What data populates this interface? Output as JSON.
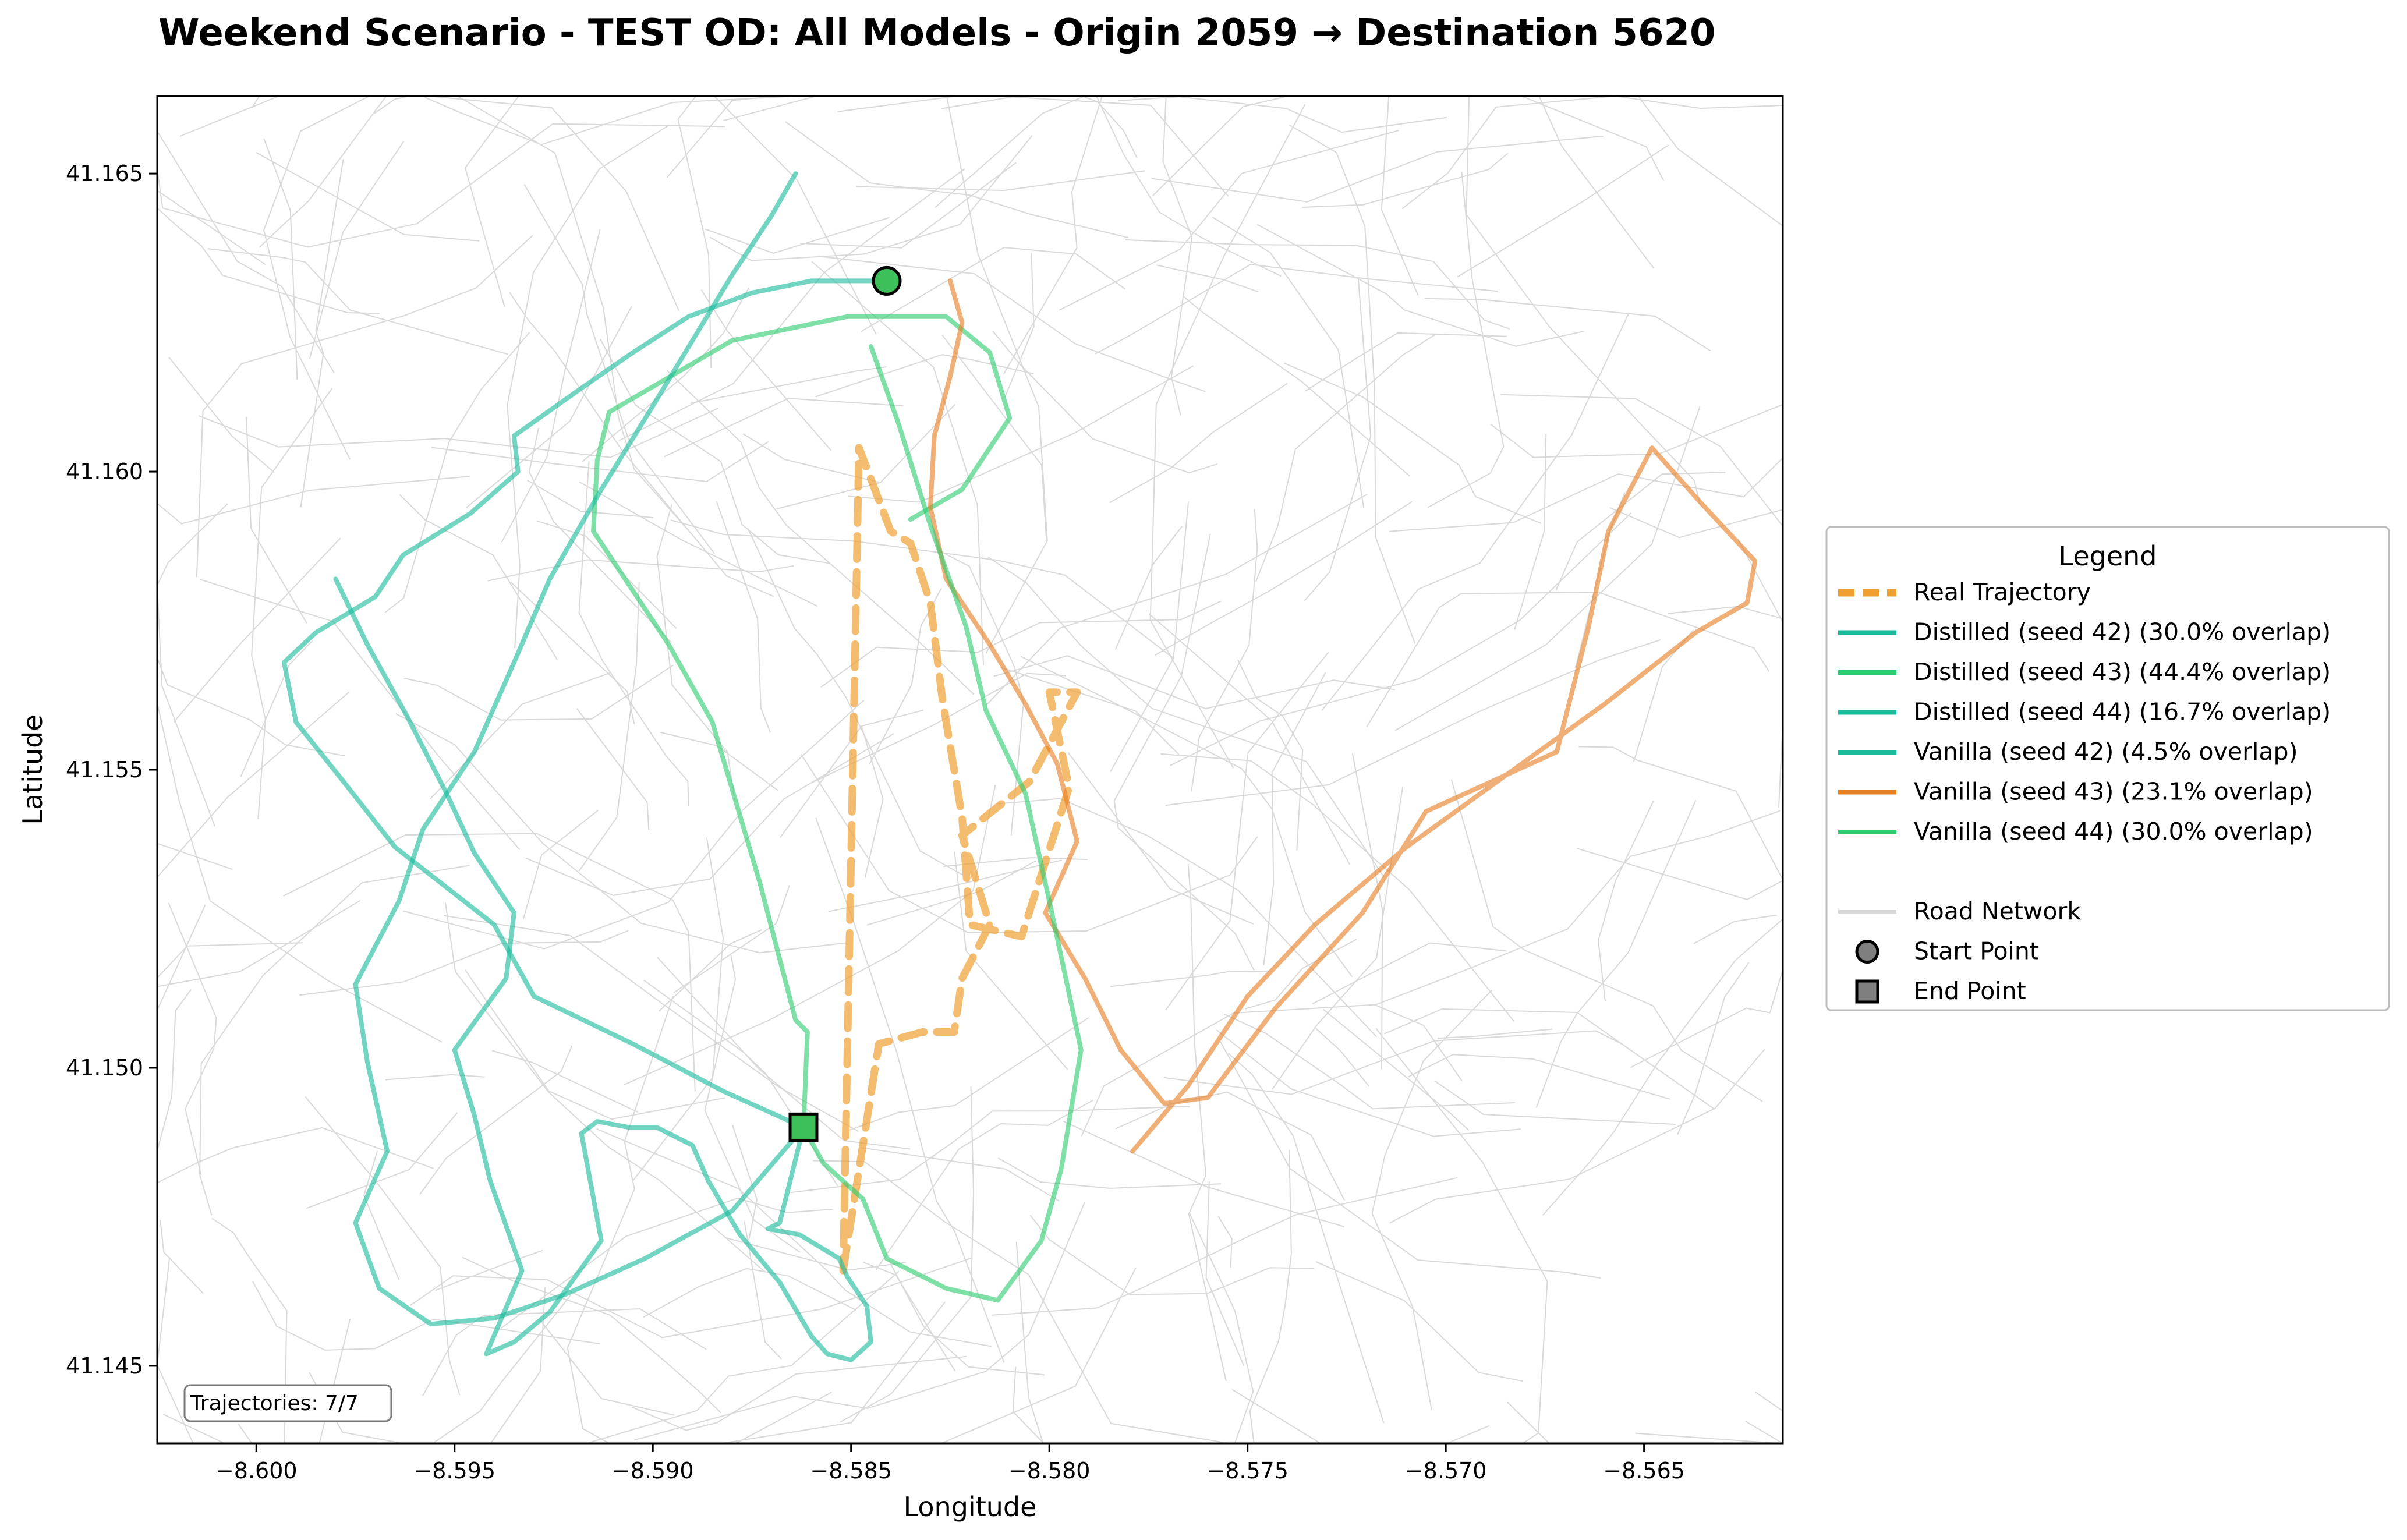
{
  "chart_data": {
    "type": "line",
    "title": "Weekend Scenario - TEST OD: All Models - Origin 2059 → Destination 5620",
    "xlabel": "Longitude",
    "ylabel": "Latitude",
    "xlim": [
      -8.6025,
      -8.5615
    ],
    "ylim": [
      41.1437,
      41.1663
    ],
    "x_ticks": [
      -8.6,
      -8.595,
      -8.59,
      -8.585,
      -8.58,
      -8.575,
      -8.57,
      -8.565
    ],
    "x_tick_labels": [
      "−8.600",
      "−8.595",
      "−8.590",
      "−8.585",
      "−8.580",
      "−8.575",
      "−8.570",
      "−8.565"
    ],
    "y_ticks": [
      41.145,
      41.15,
      41.155,
      41.16,
      41.165
    ],
    "y_tick_labels": [
      "41.145",
      "41.150",
      "41.155",
      "41.160",
      "41.165"
    ],
    "grid": false,
    "legend_position": "right (outside plot area)",
    "legend_title": "Legend",
    "annotation": "Trajectories: 7/7",
    "start_point": {
      "label": "Start Point",
      "x": -8.5841,
      "y": 41.1632,
      "color": "#3dbf5a"
    },
    "end_point": {
      "label": "End Point",
      "x": -8.5862,
      "y": 41.149,
      "color": "#3dbf5a"
    },
    "road_network": {
      "label": "Road Network",
      "color": "#d9d9d9"
    },
    "series": [
      {
        "name": "Real Trajectory",
        "color": "#f0a030",
        "style": "dashed",
        "x": [
          -8.5852,
          -8.5843,
          -8.5832,
          -8.5824,
          -8.5822,
          -8.5815,
          -8.5822,
          -8.5805,
          -8.5793,
          -8.58,
          -8.5795,
          -8.5807,
          -8.582,
          -8.5822,
          -8.5827,
          -8.583,
          -8.5835,
          -8.584,
          -8.5848,
          -8.5852
        ],
        "y": [
          41.1466,
          41.1504,
          41.1506,
          41.1506,
          41.1515,
          41.1524,
          41.1539,
          41.1548,
          41.1563,
          41.1563,
          41.1547,
          41.1522,
          41.1524,
          41.1542,
          41.1562,
          41.1578,
          41.1588,
          41.159,
          41.1604,
          41.1466
        ]
      },
      {
        "name": "Distilled (seed 42) (30.0% overlap)",
        "color": "#1abc9c",
        "style": "solid",
        "x": [
          -8.5862,
          -8.5868,
          -8.5871,
          -8.5863,
          -8.5853,
          -8.5851,
          -8.5846,
          -8.5845,
          -8.585,
          -8.5856,
          -8.586,
          -8.5868,
          -8.5878,
          -8.5886,
          -8.589,
          -8.5899,
          -8.5906,
          -8.5914,
          -8.5918,
          -8.5913,
          -8.5926,
          -8.5935,
          -8.5942,
          -8.5933,
          -8.5941,
          -8.5945,
          -8.595,
          -8.5937,
          -8.5935,
          -8.5945,
          -8.5952,
          -8.5962,
          -8.5972,
          -8.598
        ],
        "y": [
          41.149,
          41.1474,
          41.1473,
          41.1472,
          41.1468,
          41.1465,
          41.146,
          41.1454,
          41.1451,
          41.1452,
          41.1455,
          41.1464,
          41.1472,
          41.1481,
          41.1487,
          41.149,
          41.149,
          41.1491,
          41.1489,
          41.1471,
          41.1459,
          41.1454,
          41.1452,
          41.1466,
          41.1481,
          41.1492,
          41.1503,
          41.1515,
          41.1526,
          41.1536,
          41.1546,
          41.1559,
          41.1571,
          41.1582
        ]
      },
      {
        "name": "Distilled (seed 43) (44.4% overlap)",
        "color": "#2ecc71",
        "style": "solid",
        "x": [
          -8.5862,
          -8.5861,
          -8.5864,
          -8.5873,
          -8.5885,
          -8.5896,
          -8.5906,
          -8.5915,
          -8.5914,
          -8.5911,
          -8.588,
          -8.5851,
          -8.5826,
          -8.5815,
          -8.581,
          -8.5822,
          -8.5835
        ],
        "y": [
          41.149,
          41.1506,
          41.1508,
          41.1531,
          41.1558,
          41.1571,
          41.1581,
          41.159,
          41.1602,
          41.161,
          41.1622,
          41.1626,
          41.1626,
          41.162,
          41.1609,
          41.1597,
          41.1592
        ]
      },
      {
        "name": "Distilled (seed 44) (16.7% overlap)",
        "color": "#1abc9c",
        "style": "solid",
        "x": [
          -8.5862,
          -8.5882,
          -8.5905,
          -8.593,
          -8.594,
          -8.5965,
          -8.5978,
          -8.599,
          -8.5993,
          -8.5985,
          -8.597,
          -8.5963,
          -8.5946,
          -8.5934,
          -8.5935,
          -8.5918,
          -8.5905,
          -8.5891,
          -8.5875,
          -8.586,
          -8.5851,
          -8.5845
        ],
        "y": [
          41.149,
          41.1496,
          41.1504,
          41.1512,
          41.1524,
          41.1537,
          41.1548,
          41.1558,
          41.1568,
          41.1573,
          41.1579,
          41.1586,
          41.1593,
          41.16,
          41.1606,
          41.1614,
          41.162,
          41.1626,
          41.163,
          41.1632,
          41.1632,
          41.1632
        ]
      },
      {
        "name": "Vanilla (seed 42) (4.5% overlap)",
        "color": "#1abc9c",
        "style": "solid",
        "x": [
          -8.5862,
          -8.588,
          -8.5902,
          -8.5922,
          -8.594,
          -8.5956,
          -8.5969,
          -8.5975,
          -8.5967,
          -8.5972,
          -8.5975,
          -8.5964,
          -8.5958,
          -8.5945,
          -8.5935,
          -8.5926,
          -8.5913,
          -8.59,
          -8.589,
          -8.588,
          -8.587,
          -8.5864
        ],
        "y": [
          41.149,
          41.1476,
          41.1468,
          41.1462,
          41.1458,
          41.1457,
          41.1463,
          41.1474,
          41.1486,
          41.1501,
          41.1514,
          41.1528,
          41.154,
          41.1553,
          41.1568,
          41.1582,
          41.1597,
          41.1611,
          41.1622,
          41.1633,
          41.1643,
          41.165
        ]
      },
      {
        "name": "Vanilla (seed 43) (23.1% overlap)",
        "color": "#e67e22",
        "style": "solid",
        "x": [
          -8.5825,
          -8.5822,
          -8.5825,
          -8.5829,
          -8.583,
          -8.5826,
          -8.5815,
          -8.5806,
          -8.5798,
          -8.5793,
          -8.5801,
          -8.5791,
          -8.5782,
          -8.5771,
          -8.576,
          -8.5743,
          -8.5721,
          -8.5705,
          -8.5672,
          -8.5664,
          -8.5659,
          -8.5648,
          -8.5636,
          -8.5622,
          -8.5624,
          -8.5637,
          -8.566,
          -8.5685,
          -8.571,
          -8.5733,
          -8.575,
          -8.5765,
          -8.5779
        ],
        "y": [
          41.1632,
          41.1625,
          41.1616,
          41.1606,
          41.1594,
          41.1582,
          41.1571,
          41.1561,
          41.1551,
          41.1538,
          41.1526,
          41.1515,
          41.1503,
          41.1494,
          41.1495,
          41.151,
          41.1526,
          41.1543,
          41.1553,
          41.1574,
          41.159,
          41.1604,
          41.1595,
          41.1585,
          41.1578,
          41.1573,
          41.1561,
          41.1549,
          41.1537,
          41.1524,
          41.1512,
          41.1497,
          41.1486
        ]
      },
      {
        "name": "Vanilla (seed 44) (30.0% overlap)",
        "color": "#2ecc71",
        "style": "solid",
        "x": [
          -8.5862,
          -8.5857,
          -8.5847,
          -8.5841,
          -8.5826,
          -8.5813,
          -8.5802,
          -8.5797,
          -8.5792,
          -8.58,
          -8.5806,
          -8.5816,
          -8.5821,
          -8.583,
          -8.5838,
          -8.5845
        ],
        "y": [
          41.149,
          41.1484,
          41.1478,
          41.1468,
          41.1463,
          41.1461,
          41.1471,
          41.1483,
          41.1503,
          41.1528,
          41.1546,
          41.156,
          41.1574,
          41.1591,
          41.1608,
          41.1621
        ]
      }
    ]
  }
}
